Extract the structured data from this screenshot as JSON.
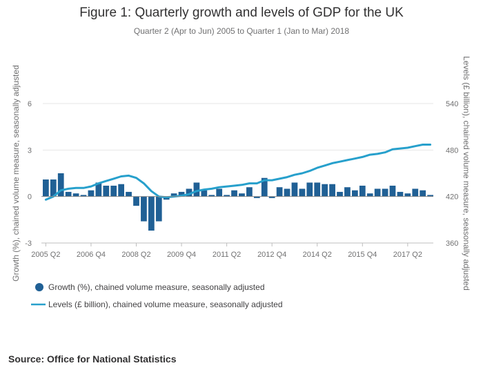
{
  "chart_data": {
    "type": "bar",
    "title": "Figure 1: Quarterly growth and levels of GDP for the UK",
    "subtitle": "Quarter 2 (Apr to Jun) 2005 to Quarter 1 (Jan to Mar) 2018",
    "source": "Source: Office for National Statistics",
    "x_tick_labels": [
      "2005 Q2",
      "2006 Q4",
      "2008 Q2",
      "2009 Q4",
      "2011 Q2",
      "2012 Q4",
      "2014 Q2",
      "2015 Q4",
      "2017 Q2"
    ],
    "y_left": {
      "label": "Growth (%), chained volume measure, seasonally adjusted",
      "range": [
        -3,
        6
      ],
      "ticks": [
        -3,
        0,
        3,
        6
      ]
    },
    "y_right": {
      "label": "Levels (£ billion), chained volume measure, seasonally adjusted",
      "range": [
        360,
        540
      ],
      "ticks": [
        360,
        420,
        480,
        540
      ]
    },
    "legend_position": "bottom-left",
    "grid": true,
    "series": [
      {
        "name": "Growth (%), chained volume measure, seasonally adjusted",
        "type": "bar",
        "axis": "left",
        "color": "#206095",
        "values": [
          1.1,
          1.1,
          1.5,
          0.3,
          0.2,
          0.1,
          0.4,
          0.9,
          0.7,
          0.7,
          0.8,
          0.3,
          -0.6,
          -1.6,
          -2.2,
          -1.6,
          -0.2,
          0.2,
          0.3,
          0.5,
          0.9,
          0.4,
          0.1,
          0.5,
          0.1,
          0.4,
          0.2,
          0.6,
          -0.1,
          1.2,
          -0.1,
          0.6,
          0.5,
          0.9,
          0.5,
          0.9,
          0.9,
          0.8,
          0.8,
          0.3,
          0.6,
          0.4,
          0.7,
          0.2,
          0.5,
          0.5,
          0.7,
          0.3,
          0.2,
          0.5,
          0.4,
          0.1
        ]
      },
      {
        "name": "Levels (£ billion), chained volume measure, seasonally adjusted",
        "type": "line",
        "axis": "right",
        "color": "#27a0cc",
        "values": [
          416,
          420,
          428,
          430,
          431,
          431,
          433,
          437,
          440,
          443,
          446,
          447,
          444,
          437,
          427,
          420,
          419,
          420,
          421,
          423,
          427,
          429,
          430,
          432,
          433,
          434,
          435,
          437,
          437,
          441,
          441,
          443,
          445,
          448,
          450,
          453,
          457,
          460,
          463,
          465,
          467,
          469,
          471,
          474,
          475,
          477,
          481,
          482,
          483,
          485,
          487,
          487
        ]
      }
    ]
  }
}
